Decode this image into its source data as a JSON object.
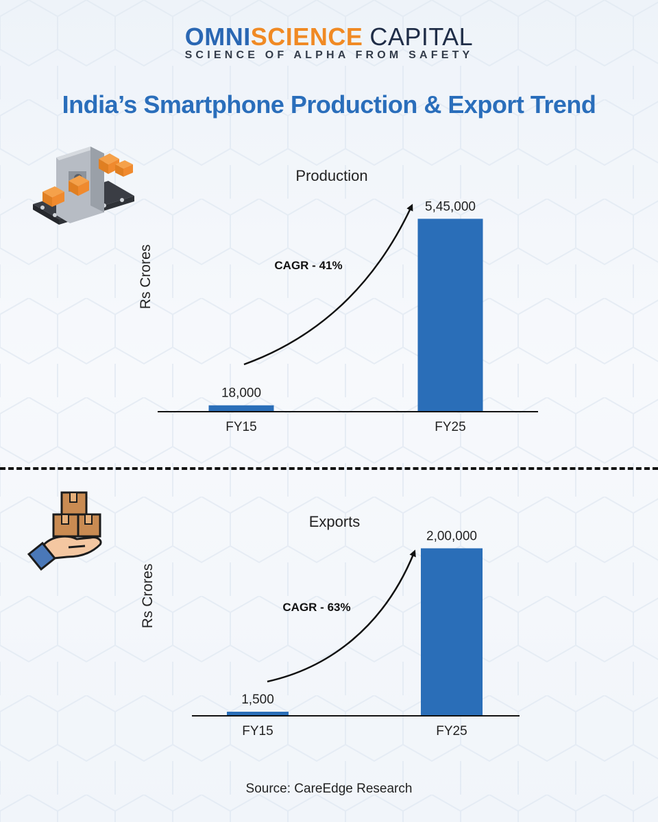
{
  "header": {
    "brand_part1": "OMNI",
    "brand_part2": "SCIENCE",
    "brand_part3": "CAPITAL",
    "tagline": "SCIENCE OF ALPHA FROM SAFETY",
    "title": "India’s Smartphone Production & Export Trend"
  },
  "icons": {
    "production": "factory-conveyor-icon",
    "exports": "hand-holding-boxes-icon"
  },
  "colors": {
    "bar": "#2a6eb8",
    "title": "#2a6ebb",
    "brand_blue": "#2a67b3",
    "brand_orange": "#f08a24"
  },
  "chart_data": [
    {
      "type": "bar",
      "title": "Production",
      "ylabel": "Rs Crores",
      "categories": [
        "FY15",
        "FY25"
      ],
      "values": [
        18000,
        545000
      ],
      "value_labels": [
        "18,000",
        "5,45,000"
      ],
      "annotation": "CAGR - 41%",
      "ylim": [
        0,
        600000
      ],
      "grid": false,
      "legend": "none"
    },
    {
      "type": "bar",
      "title": "Exports",
      "ylabel": "Rs Crores",
      "categories": [
        "FY15",
        "FY25"
      ],
      "values": [
        1500,
        200000
      ],
      "value_labels": [
        "1,500",
        "2,00,000"
      ],
      "annotation": "CAGR - 63%",
      "ylim": [
        0,
        220000
      ],
      "grid": false,
      "legend": "none"
    }
  ],
  "footer": {
    "source": "Source: CareEdge Research"
  }
}
